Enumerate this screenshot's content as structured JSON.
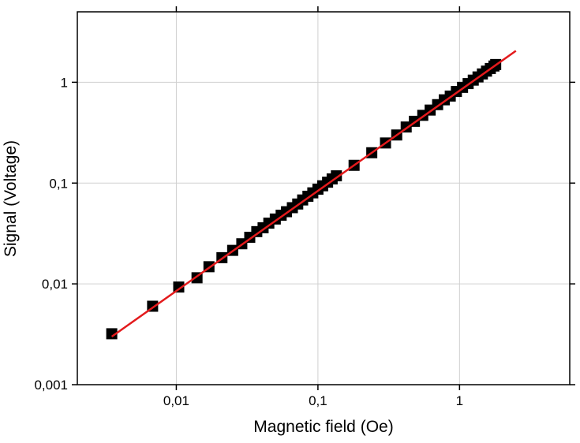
{
  "chart_data": {
    "type": "scatter",
    "xlabel": "Magnetic field  (Oe)",
    "ylabel": "Signal (Voltage)",
    "xscale": "log",
    "yscale": "log",
    "grid": true,
    "xlim": [
      0.002,
      6
    ],
    "ylim": [
      0.001,
      5
    ],
    "xticks": [
      {
        "value": 0.01,
        "label": "0,01"
      },
      {
        "value": 0.1,
        "label": "0,1"
      },
      1
    ],
    "yticks": [
      {
        "value": 0.001,
        "label": "0,001"
      },
      {
        "value": 0.01,
        "label": "0,01"
      },
      {
        "value": 0.1,
        "label": "0,1"
      },
      1
    ],
    "series": [
      {
        "type": "scatter",
        "color": "#000000",
        "x": [
          0.0035,
          0.0068,
          0.0104,
          0.014,
          0.017,
          0.021,
          0.025,
          0.029,
          0.033,
          0.037,
          0.041,
          0.045,
          0.05,
          0.055,
          0.06,
          0.066,
          0.072,
          0.078,
          0.085,
          0.092,
          0.1,
          0.108,
          0.117,
          0.126,
          0.135,
          0.18,
          0.24,
          0.3,
          0.36,
          0.42,
          0.48,
          0.55,
          0.62,
          0.7,
          0.78,
          0.86,
          0.95,
          1.05,
          1.15,
          1.25,
          1.35,
          1.45,
          1.55,
          1.65,
          1.75,
          1.8
        ],
        "values": [
          0.0032,
          0.006,
          0.0093,
          0.0115,
          0.0148,
          0.0182,
          0.0215,
          0.025,
          0.029,
          0.033,
          0.036,
          0.04,
          0.044,
          0.048,
          0.052,
          0.057,
          0.062,
          0.068,
          0.074,
          0.08,
          0.087,
          0.094,
          0.102,
          0.11,
          0.118,
          0.15,
          0.2,
          0.25,
          0.3,
          0.36,
          0.41,
          0.47,
          0.53,
          0.6,
          0.67,
          0.73,
          0.81,
          0.89,
          0.97,
          1.05,
          1.13,
          1.21,
          1.29,
          1.37,
          1.45,
          1.5
        ]
      },
      {
        "type": "line",
        "color": "#e31a1c",
        "x": [
          0.0035,
          2.5
        ],
        "values": [
          0.003,
          2.05
        ]
      }
    ]
  }
}
